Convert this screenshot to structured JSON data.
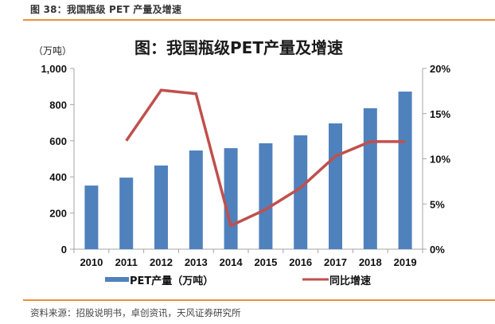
{
  "header": {
    "figure_caption": "图 38：我国瓶级 PET 产量及增速"
  },
  "footer": {
    "source": "资料来源：招股说明书，卓创资讯，天风证券研究所"
  },
  "colors": {
    "accent_rule": "#E8913A",
    "bar": "#4F81BD",
    "line": "#C0504D",
    "axis": "#A6A6A6"
  },
  "chart_data": {
    "type": "bar",
    "title": "图：我国瓶级PET产量及增速",
    "y_unit_label": "（万吨）",
    "categories": [
      "2010",
      "2011",
      "2012",
      "2013",
      "2014",
      "2015",
      "2016",
      "2017",
      "2018",
      "2019"
    ],
    "series": [
      {
        "name": "PET产量（万吨）",
        "type": "bar",
        "axis": "left",
        "values": [
          352,
          396,
          463,
          546,
          559,
          586,
          630,
          696,
          780,
          872
        ]
      },
      {
        "name": "同比增速",
        "type": "line",
        "axis": "right",
        "values": [
          null,
          12.0,
          17.6,
          17.2,
          2.6,
          4.4,
          6.8,
          10.3,
          11.9,
          11.9
        ]
      }
    ],
    "y_left": {
      "range": [
        0,
        1000
      ],
      "ticks": [
        0,
        200,
        400,
        600,
        800,
        1000
      ],
      "tick_labels": [
        "0",
        "200",
        "400",
        "600",
        "800",
        "1,000"
      ]
    },
    "y_right": {
      "range": [
        0,
        20
      ],
      "ticks": [
        0,
        5,
        10,
        15,
        20
      ],
      "tick_labels": [
        "0%",
        "5%",
        "10%",
        "15%",
        "20%"
      ]
    },
    "xlabel": "",
    "grid": false,
    "legend_position": "bottom"
  }
}
